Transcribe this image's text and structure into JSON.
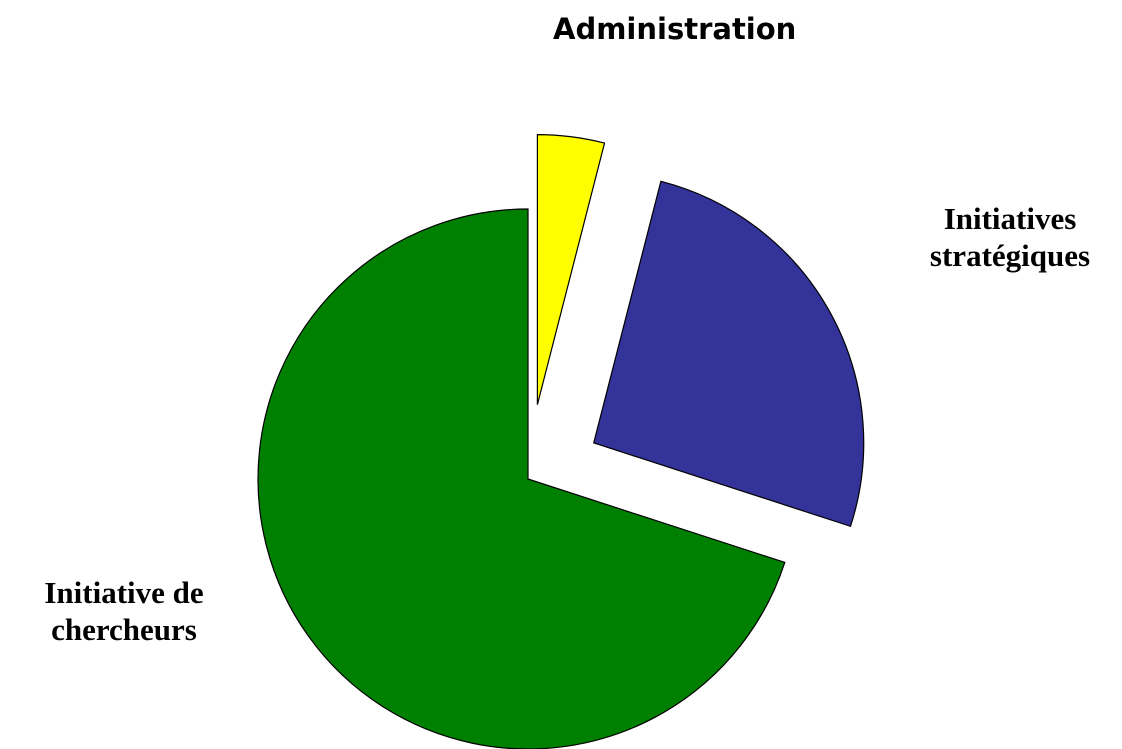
{
  "chart_data": {
    "type": "pie",
    "slices": [
      {
        "label_lines": [
          "Administration"
        ],
        "value": 4,
        "color": "#ffff00",
        "exploded": true
      },
      {
        "label_lines": [
          "Initiatives",
          "stratégiques"
        ],
        "value": 26,
        "color": "#333399",
        "exploded": true
      },
      {
        "label_lines": [
          "Initiative de",
          "chercheurs"
        ],
        "value": 70,
        "color": "#008000",
        "exploded": false
      }
    ],
    "start_angle_deg": 0,
    "direction": "clockwise",
    "legend": "none"
  }
}
